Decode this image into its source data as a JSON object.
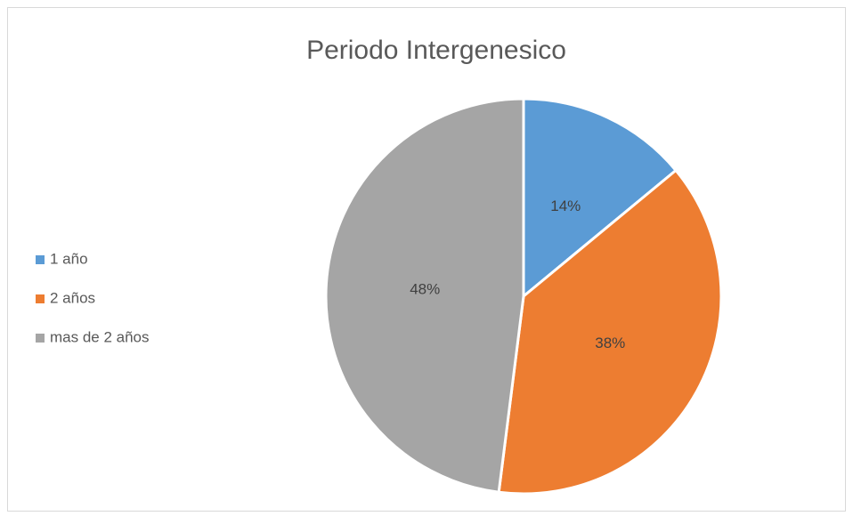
{
  "chart_data": {
    "type": "pie",
    "title": "Periodo Intergenesico",
    "categories": [
      "1 año",
      "2 años",
      "mas de 2 años"
    ],
    "values": [
      14,
      38,
      48
    ],
    "value_labels": [
      "14%",
      "38%",
      "48%"
    ],
    "colors": [
      "#5b9bd5",
      "#ed7d31",
      "#a5a5a5"
    ],
    "legend": "left"
  }
}
